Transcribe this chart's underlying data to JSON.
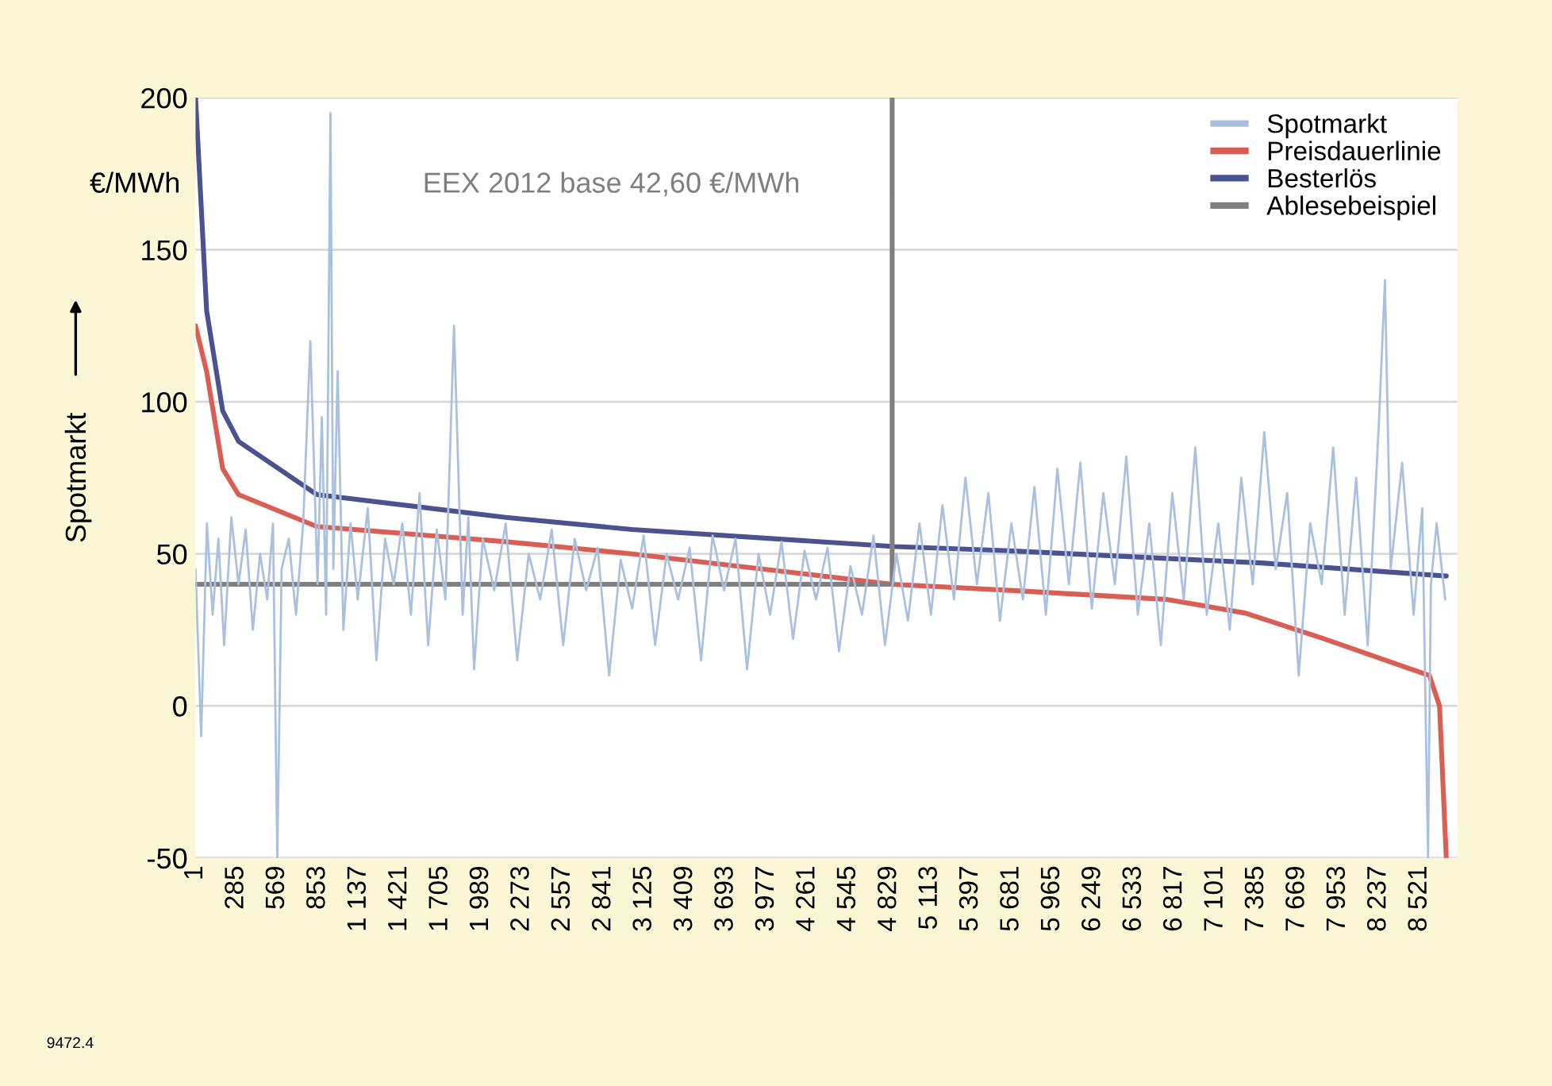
{
  "chart_data": {
    "type": "line",
    "ylabel": "Spotmarkt",
    "annotations": [
      "€/MWh",
      "EEX 2012 base 42,60 €/MWh",
      "9472.4"
    ],
    "xlim": [
      1,
      8784
    ],
    "xticks": [
      1,
      285,
      569,
      853,
      {
        "value": 1137,
        "label": "1 137"
      },
      {
        "value": 1421,
        "label": "1 421"
      },
      {
        "value": 1705,
        "label": "1 705"
      },
      {
        "value": 1989,
        "label": "1 989"
      },
      {
        "value": 2273,
        "label": "2 273"
      },
      {
        "value": 2557,
        "label": "2 557"
      },
      {
        "value": 2841,
        "label": "2 841"
      },
      {
        "value": 3125,
        "label": "3 125"
      },
      {
        "value": 3409,
        "label": "3 409"
      },
      {
        "value": 3693,
        "label": "3 693"
      },
      {
        "value": 3977,
        "label": "3 977"
      },
      {
        "value": 4261,
        "label": "4 261"
      },
      {
        "value": 4545,
        "label": "4 545"
      },
      {
        "value": 4829,
        "label": "4 829"
      },
      {
        "value": 5113,
        "label": "5 113"
      },
      {
        "value": 5397,
        "label": "5 397"
      },
      {
        "value": 5681,
        "label": "5 681"
      },
      {
        "value": 5965,
        "label": "5 965"
      },
      {
        "value": 6249,
        "label": "6 249"
      },
      {
        "value": 6533,
        "label": "6 533"
      },
      {
        "value": 6817,
        "label": "6 817"
      },
      {
        "value": 7101,
        "label": "7 101"
      },
      {
        "value": 7385,
        "label": "7 385"
      },
      {
        "value": 7669,
        "label": "7 669"
      },
      {
        "value": 7953,
        "label": "7 953"
      },
      {
        "value": 8237,
        "label": "8 237"
      },
      {
        "value": 8521,
        "label": "8 521"
      }
    ],
    "ylim": [
      -50,
      200
    ],
    "yticks": [
      -50,
      0,
      50,
      100,
      150,
      200
    ],
    "grid": "y",
    "legend": "top right",
    "series": [
      {
        "name": "Spotmarkt",
        "color": "#a9c1de",
        "x": [
          1,
          40,
          80,
          120,
          160,
          200,
          250,
          300,
          350,
          400,
          450,
          500,
          540,
          570,
          600,
          650,
          700,
          750,
          800,
          850,
          880,
          910,
          940,
          960,
          990,
          1030,
          1080,
          1130,
          1200,
          1260,
          1320,
          1380,
          1440,
          1500,
          1560,
          1620,
          1680,
          1740,
          1800,
          1860,
          1900,
          1940,
          2000,
          2080,
          2160,
          2240,
          2320,
          2400,
          2480,
          2560,
          2640,
          2720,
          2800,
          2880,
          2960,
          3040,
          3120,
          3200,
          3280,
          3360,
          3440,
          3520,
          3600,
          3680,
          3760,
          3840,
          3920,
          4000,
          4080,
          4160,
          4240,
          4320,
          4400,
          4480,
          4560,
          4640,
          4720,
          4800,
          4880,
          4960,
          5040,
          5120,
          5200,
          5280,
          5360,
          5440,
          5520,
          5600,
          5680,
          5760,
          5840,
          5920,
          6000,
          6080,
          6160,
          6240,
          6320,
          6400,
          6480,
          6560,
          6640,
          6720,
          6800,
          6880,
          6960,
          7040,
          7120,
          7200,
          7280,
          7360,
          7440,
          7520,
          7600,
          7680,
          7760,
          7840,
          7920,
          8000,
          8080,
          8160,
          8240,
          8280,
          8320,
          8400,
          8480,
          8540,
          8580,
          8600,
          8640,
          8700
        ],
        "values": [
          45,
          -10,
          60,
          30,
          55,
          20,
          62,
          40,
          58,
          25,
          50,
          35,
          60,
          -50,
          45,
          55,
          30,
          60,
          120,
          40,
          95,
          30,
          195,
          45,
          110,
          25,
          60,
          35,
          65,
          15,
          55,
          40,
          60,
          30,
          70,
          20,
          58,
          35,
          125,
          30,
          62,
          12,
          55,
          38,
          60,
          15,
          50,
          35,
          58,
          20,
          55,
          38,
          52,
          10,
          48,
          32,
          56,
          20,
          50,
          35,
          52,
          15,
          56,
          38,
          55,
          12,
          50,
          30,
          54,
          22,
          51,
          35,
          52,
          18,
          46,
          30,
          56,
          20,
          50,
          28,
          60,
          30,
          66,
          35,
          75,
          40,
          70,
          28,
          60,
          35,
          72,
          30,
          78,
          40,
          80,
          32,
          70,
          40,
          82,
          30,
          60,
          20,
          70,
          35,
          85,
          30,
          60,
          25,
          75,
          40,
          90,
          45,
          70,
          10,
          60,
          40,
          85,
          30,
          75,
          20,
          95,
          140,
          45,
          80,
          30,
          65,
          -50,
          40,
          60,
          35
        ]
      },
      {
        "name": "Preisdauerlinie",
        "color": "#d95f55",
        "x": [
          1,
          78,
          190,
          300,
          845,
          2160,
          3040,
          4135,
          4850,
          5670,
          6766,
          7310,
          7860,
          8590,
          8660,
          8707
        ],
        "values": [
          125,
          110,
          78,
          69.5,
          59,
          54,
          50,
          44,
          40,
          38,
          35,
          30.5,
          22,
          10,
          0,
          -50
        ]
      },
      {
        "name": "Besterlös",
        "color": "#4b5290",
        "x": [
          1,
          78,
          190,
          300,
          845,
          2160,
          3040,
          4870,
          5670,
          7420,
          8707
        ],
        "values": [
          200,
          130,
          97,
          87,
          69.5,
          62,
          58,
          52.4,
          51,
          47,
          42.7
        ]
      },
      {
        "name": "Ablesebeispiel",
        "color": "#7f7f7f",
        "x": [
          1,
          4850,
          4850
        ],
        "values": [
          40,
          40,
          200
        ]
      }
    ]
  }
}
